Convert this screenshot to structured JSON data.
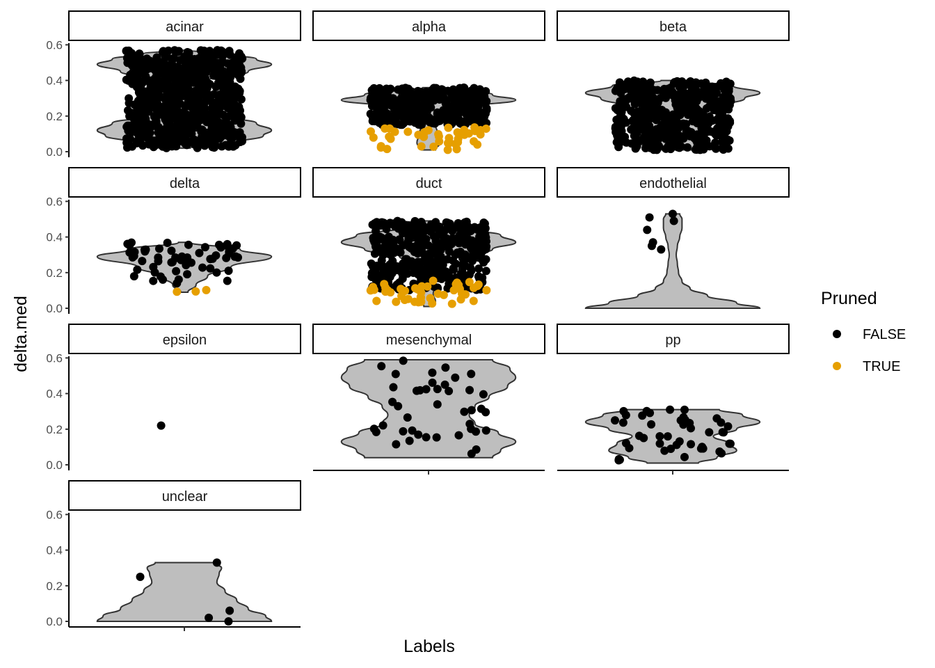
{
  "chart_data": {
    "type": "violin",
    "title": "",
    "xlabel": "Labels",
    "ylabel": "delta.med",
    "ylim": [
      0,
      0.6
    ],
    "yticks": [
      "0.0",
      "0.2",
      "0.4",
      "0.6"
    ],
    "grid": false,
    "legend": {
      "title": "Pruned",
      "placement": "right",
      "entries": [
        {
          "label": "FALSE",
          "color": "#000000"
        },
        {
          "label": "TRUE",
          "color": "#E69F00"
        }
      ]
    },
    "colors": {
      "violin_fill": "#bebebe",
      "violin_stroke": "#333333",
      "false": "#000000",
      "true": "#E69F00"
    },
    "panels": [
      {
        "label": "acinar",
        "violin_range": [
          0.02,
          0.57
        ],
        "violin_profile": [
          [
            0.02,
            0.05
          ],
          [
            0.05,
            0.45
          ],
          [
            0.09,
            0.68
          ],
          [
            0.12,
            0.75
          ],
          [
            0.16,
            0.62
          ],
          [
            0.2,
            0.33
          ],
          [
            0.25,
            0.12
          ],
          [
            0.3,
            0.06
          ],
          [
            0.35,
            0.07
          ],
          [
            0.4,
            0.2
          ],
          [
            0.45,
            0.55
          ],
          [
            0.49,
            0.75
          ],
          [
            0.52,
            0.62
          ],
          [
            0.55,
            0.35
          ],
          [
            0.57,
            0.05
          ]
        ],
        "points_false": {
          "n": 700,
          "ymin": 0.02,
          "ymax": 0.57
        },
        "points_true": {
          "n": 0
        }
      },
      {
        "label": "alpha",
        "violin_range": [
          0.01,
          0.36
        ],
        "violin_profile": [
          [
            0.01,
            0.06
          ],
          [
            0.05,
            0.1
          ],
          [
            0.1,
            0.08
          ],
          [
            0.15,
            0.06
          ],
          [
            0.2,
            0.08
          ],
          [
            0.25,
            0.35
          ],
          [
            0.29,
            0.75
          ],
          [
            0.32,
            0.55
          ],
          [
            0.36,
            0.05
          ]
        ],
        "points_false": {
          "n": 350,
          "ymin": 0.15,
          "ymax": 0.36
        },
        "points_true": {
          "n": 40,
          "ymin": 0.01,
          "ymax": 0.14
        }
      },
      {
        "label": "beta",
        "violin_range": [
          0.01,
          0.4
        ],
        "violin_profile": [
          [
            0.01,
            0.18
          ],
          [
            0.05,
            0.28
          ],
          [
            0.1,
            0.3
          ],
          [
            0.15,
            0.28
          ],
          [
            0.2,
            0.3
          ],
          [
            0.25,
            0.38
          ],
          [
            0.3,
            0.62
          ],
          [
            0.33,
            0.75
          ],
          [
            0.37,
            0.52
          ],
          [
            0.4,
            0.1
          ]
        ],
        "points_false": {
          "n": 450,
          "ymin": 0.01,
          "ymax": 0.4
        },
        "points_true": {
          "n": 0
        }
      },
      {
        "label": "delta",
        "violin_range": [
          0.09,
          0.37
        ],
        "violin_profile": [
          [
            0.09,
            0.03
          ],
          [
            0.13,
            0.1
          ],
          [
            0.18,
            0.2
          ],
          [
            0.23,
            0.4
          ],
          [
            0.29,
            0.75
          ],
          [
            0.33,
            0.48
          ],
          [
            0.37,
            0.05
          ]
        ],
        "points_false": {
          "n": 60,
          "ymin": 0.14,
          "ymax": 0.37
        },
        "points_true": {
          "n": 3,
          "ymin": 0.09,
          "ymax": 0.11
        }
      },
      {
        "label": "duct",
        "violin_range": [
          0.01,
          0.49
        ],
        "violin_profile": [
          [
            0.01,
            0.04
          ],
          [
            0.04,
            0.06
          ],
          [
            0.08,
            0.04
          ],
          [
            0.12,
            0.05
          ],
          [
            0.16,
            0.03
          ],
          [
            0.2,
            0.04
          ],
          [
            0.25,
            0.08
          ],
          [
            0.29,
            0.25
          ],
          [
            0.33,
            0.55
          ],
          [
            0.37,
            0.75
          ],
          [
            0.41,
            0.62
          ],
          [
            0.45,
            0.25
          ],
          [
            0.49,
            0.05
          ]
        ],
        "points_false": {
          "n": 420,
          "ymin": 0.1,
          "ymax": 0.49
        },
        "points_true": {
          "n": 45,
          "ymin": 0.02,
          "ymax": 0.16
        }
      },
      {
        "label": "endothelial",
        "violin_range": [
          0.0,
          0.53
        ],
        "violin_profile": [
          [
            0.0,
            0.75
          ],
          [
            0.03,
            0.55
          ],
          [
            0.07,
            0.3
          ],
          [
            0.11,
            0.15
          ],
          [
            0.15,
            0.08
          ],
          [
            0.2,
            0.05
          ],
          [
            0.25,
            0.04
          ],
          [
            0.3,
            0.03
          ],
          [
            0.35,
            0.04
          ],
          [
            0.4,
            0.06
          ],
          [
            0.45,
            0.08
          ],
          [
            0.5,
            0.08
          ],
          [
            0.53,
            0.06
          ]
        ],
        "points": [
          [
            -0.2,
            0.51
          ],
          [
            -0.22,
            0.44
          ],
          [
            -0.17,
            0.37
          ],
          [
            -0.18,
            0.35
          ],
          [
            -0.1,
            0.33
          ],
          [
            0.0,
            0.53
          ],
          [
            0.01,
            0.49
          ]
        ],
        "points_true": {
          "n": 0
        }
      },
      {
        "label": "epsilon",
        "points": [
          [
            -0.2,
            0.22
          ]
        ],
        "points_true": {
          "n": 0
        }
      },
      {
        "label": "mesenchymal",
        "violin_range": [
          0.04,
          0.59
        ],
        "violin_profile": [
          [
            0.04,
            0.55
          ],
          [
            0.08,
            0.62
          ],
          [
            0.13,
            0.75
          ],
          [
            0.18,
            0.6
          ],
          [
            0.23,
            0.4
          ],
          [
            0.28,
            0.35
          ],
          [
            0.33,
            0.4
          ],
          [
            0.38,
            0.52
          ],
          [
            0.44,
            0.68
          ],
          [
            0.49,
            0.75
          ],
          [
            0.54,
            0.7
          ],
          [
            0.59,
            0.55
          ]
        ],
        "points_false": {
          "n": 42,
          "ymin": 0.04,
          "ymax": 0.59
        },
        "points_true": {
          "n": 0
        }
      },
      {
        "label": "pp",
        "violin_range": [
          0.01,
          0.31
        ],
        "violin_profile": [
          [
            0.01,
            0.22
          ],
          [
            0.04,
            0.38
          ],
          [
            0.08,
            0.55
          ],
          [
            0.12,
            0.48
          ],
          [
            0.16,
            0.35
          ],
          [
            0.2,
            0.55
          ],
          [
            0.24,
            0.75
          ],
          [
            0.28,
            0.6
          ],
          [
            0.31,
            0.4
          ]
        ],
        "points_false": {
          "n": 45,
          "ymin": 0.0,
          "ymax": 0.31
        },
        "points_true": {
          "n": 0
        }
      },
      {
        "label": "unclear",
        "violin_range": [
          0.0,
          0.33
        ],
        "violin_profile": [
          [
            0.0,
            0.75
          ],
          [
            0.03,
            0.7
          ],
          [
            0.07,
            0.55
          ],
          [
            0.12,
            0.45
          ],
          [
            0.17,
            0.35
          ],
          [
            0.22,
            0.28
          ],
          [
            0.27,
            0.3
          ],
          [
            0.3,
            0.32
          ],
          [
            0.33,
            0.25
          ]
        ],
        "points": [
          [
            -0.38,
            0.25
          ],
          [
            0.28,
            0.33
          ],
          [
            0.21,
            0.02
          ],
          [
            0.39,
            0.06
          ],
          [
            0.38,
            0.0
          ]
        ],
        "points_true": {
          "n": 0
        }
      }
    ]
  }
}
